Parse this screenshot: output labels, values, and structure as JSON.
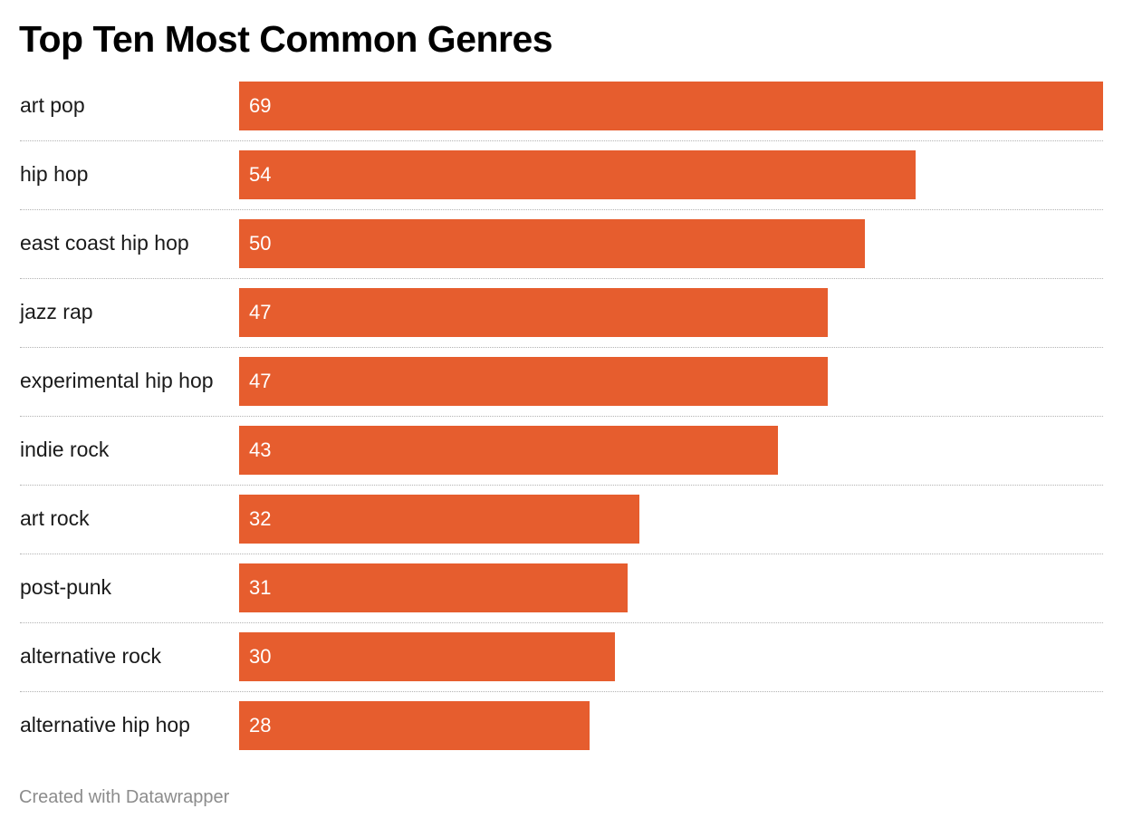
{
  "chart_data": {
    "type": "bar",
    "orientation": "horizontal",
    "title": "Top Ten Most Common Genres",
    "categories": [
      "art pop",
      "hip hop",
      "east coast hip hop",
      "jazz rap",
      "experimental hip hop",
      "indie rock",
      "art rock",
      "post-punk",
      "alternative rock",
      "alternative hip hop"
    ],
    "values": [
      69,
      54,
      50,
      47,
      47,
      43,
      32,
      31,
      30,
      28
    ],
    "xlim": [
      0,
      69
    ],
    "bar_color": "#e65d2e",
    "value_label_color": "#ffffff",
    "grid": false,
    "legend": "none"
  },
  "footer": {
    "credit": "Created with Datawrapper"
  }
}
